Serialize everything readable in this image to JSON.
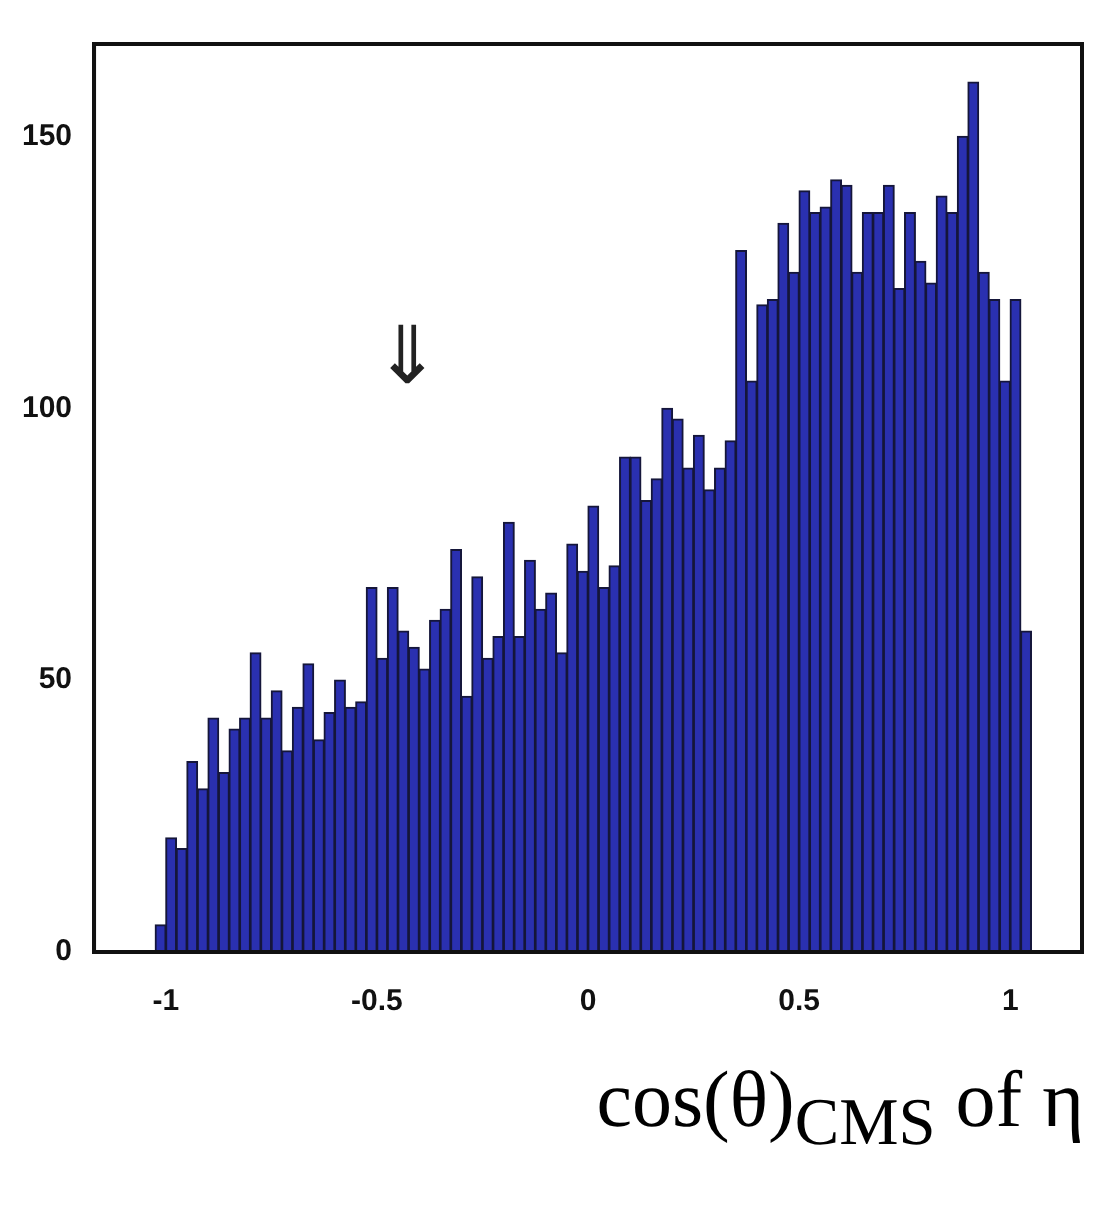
{
  "chart_data": {
    "type": "histogram",
    "xlabel": "cos(θ)$_{CMS}$ of η",
    "bins": [
      -1.025,
      -1,
      -0.975,
      -0.95,
      -0.925,
      -0.9,
      -0.875,
      -0.85,
      -0.825,
      -0.8,
      -0.775,
      -0.75,
      -0.725,
      -0.7,
      -0.675,
      -0.65,
      -0.625,
      -0.6,
      -0.575,
      -0.55,
      -0.525,
      -0.5,
      -0.475,
      -0.45,
      -0.425,
      -0.4,
      -0.375,
      -0.35,
      -0.325,
      -0.3,
      -0.275,
      -0.25,
      -0.225,
      -0.2,
      -0.175,
      -0.15,
      -0.125,
      -0.1,
      -0.075,
      -0.05,
      -0.025,
      0,
      0.025,
      0.05,
      0.075,
      0.1,
      0.125,
      0.15,
      0.175,
      0.2,
      0.225,
      0.25,
      0.275,
      0.3,
      0.325,
      0.35,
      0.375,
      0.4,
      0.425,
      0.45,
      0.475,
      0.5,
      0.525,
      0.55,
      0.575,
      0.6,
      0.625,
      0.65,
      0.675,
      0.7,
      0.725,
      0.75,
      0.775,
      0.8,
      0.825,
      0.85,
      0.875,
      0.9,
      0.925,
      0.95,
      0.975,
      1,
      1.025,
      1.05
    ],
    "values": [
      5,
      21,
      19,
      35,
      30,
      43,
      33,
      41,
      43,
      55,
      43,
      48,
      37,
      45,
      53,
      39,
      44,
      50,
      45,
      46,
      67,
      54,
      67,
      59,
      56,
      52,
      61,
      63,
      74,
      47,
      69,
      54,
      58,
      79,
      58,
      72,
      63,
      66,
      55,
      75,
      70,
      82,
      67,
      71,
      91,
      91,
      83,
      87,
      100,
      98,
      89,
      95,
      85,
      89,
      94,
      129,
      105,
      119,
      120,
      134,
      125,
      140,
      136,
      137,
      142,
      141,
      125,
      136,
      136,
      141,
      122,
      136,
      127,
      123,
      139,
      136,
      150,
      160,
      125,
      120,
      105,
      120,
      59
    ],
    "color": "#2a30b0",
    "xlim": [
      -1.17,
      1.17
    ],
    "ylim": [
      0,
      167
    ],
    "xticks": [
      -1,
      -0.5,
      0,
      0.5,
      1
    ],
    "yticks": [
      0,
      50,
      100,
      150
    ],
    "annotations": [
      "⇓"
    ]
  }
}
